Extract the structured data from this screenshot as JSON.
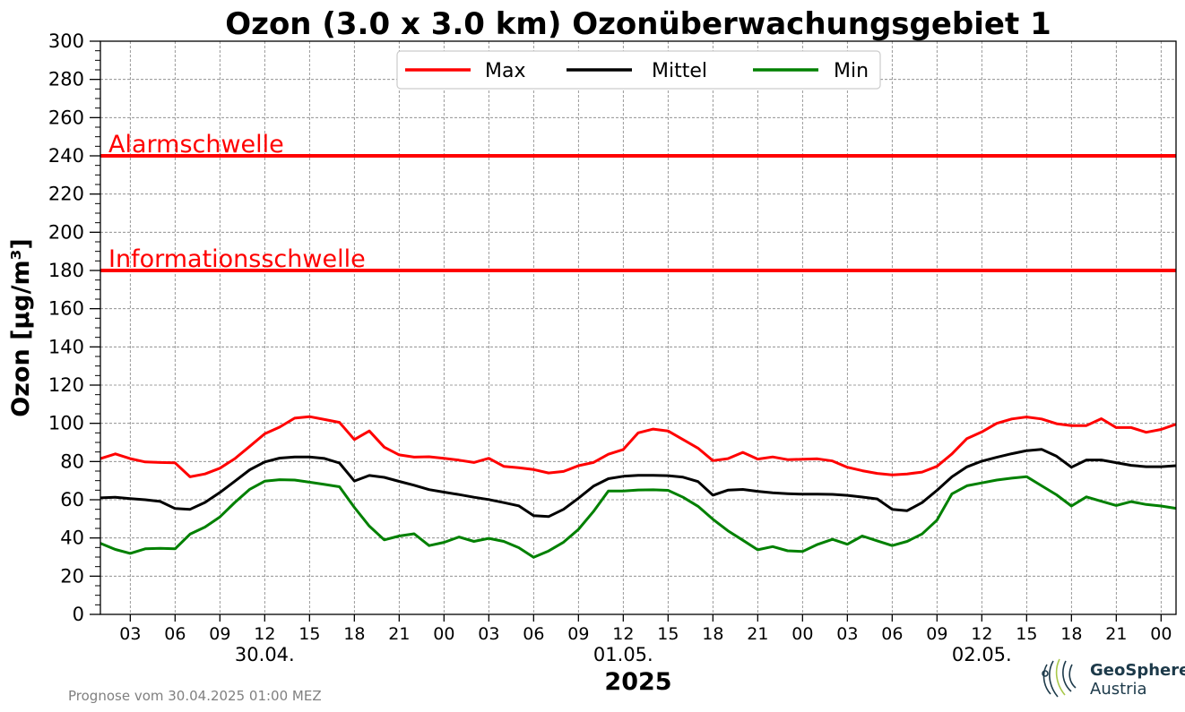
{
  "title": "Ozon (3.0 x 3.0 km) Ozonüberwachungsgebiet 1",
  "footnote": "Prognose vom 30.04.2025 01:00 MEZ",
  "logo": {
    "name": "GeoSphere",
    "sub": "Austria"
  },
  "colors": {
    "max": "#ff0000",
    "mittel": "#000000",
    "min": "#008000",
    "threshold": "#ff0000",
    "grid": "#808080"
  },
  "chart_data": {
    "type": "line",
    "title": "Ozon (3.0 x 3.0 km) Ozonüberwachungsgebiet 1",
    "ylabel": "Ozon [µg/m³]",
    "xlabel": "2025",
    "ylim": [
      0,
      300
    ],
    "yticks": [
      0,
      20,
      40,
      60,
      80,
      100,
      120,
      140,
      160,
      180,
      200,
      220,
      240,
      260,
      280,
      300
    ],
    "grid": true,
    "legend_position": "top-center",
    "x_start_hour": 1,
    "x_end_hour": 73,
    "xticks": [
      {
        "hour": 3,
        "label": "03"
      },
      {
        "hour": 6,
        "label": "06"
      },
      {
        "hour": 9,
        "label": "09"
      },
      {
        "hour": 12,
        "label": "12"
      },
      {
        "hour": 15,
        "label": "15"
      },
      {
        "hour": 18,
        "label": "18"
      },
      {
        "hour": 21,
        "label": "21"
      },
      {
        "hour": 24,
        "label": "00"
      },
      {
        "hour": 27,
        "label": "03"
      },
      {
        "hour": 30,
        "label": "06"
      },
      {
        "hour": 33,
        "label": "09"
      },
      {
        "hour": 36,
        "label": "12"
      },
      {
        "hour": 39,
        "label": "15"
      },
      {
        "hour": 42,
        "label": "18"
      },
      {
        "hour": 45,
        "label": "21"
      },
      {
        "hour": 48,
        "label": "00"
      },
      {
        "hour": 51,
        "label": "03"
      },
      {
        "hour": 54,
        "label": "06"
      },
      {
        "hour": 57,
        "label": "09"
      },
      {
        "hour": 60,
        "label": "12"
      },
      {
        "hour": 63,
        "label": "15"
      },
      {
        "hour": 66,
        "label": "18"
      },
      {
        "hour": 69,
        "label": "21"
      },
      {
        "hour": 72,
        "label": "00"
      }
    ],
    "date_labels": [
      {
        "hour": 12,
        "label": "30.04."
      },
      {
        "hour": 36,
        "label": "01.05."
      },
      {
        "hour": 60,
        "label": "02.05."
      }
    ],
    "thresholds": [
      {
        "label": "Alarmschwelle",
        "value": 240
      },
      {
        "label": "Informationsschwelle",
        "value": 180
      }
    ],
    "series": [
      {
        "name": "Max",
        "color": "#ff0000",
        "values": [
          81.5,
          84,
          81.5,
          79.8,
          79.5,
          79.3,
          72,
          73.5,
          76.5,
          81.5,
          88,
          94.5,
          98,
          102.7,
          103.5,
          102,
          100.5,
          91.5,
          96,
          87.5,
          83.5,
          82.3,
          82.5,
          81.7,
          80.7,
          79.5,
          81.7,
          77.5,
          76.8,
          75.8,
          74,
          74.8,
          77.8,
          79.5,
          83.8,
          86.3,
          95,
          97,
          96,
          91.5,
          87,
          80.5,
          81.5,
          84.8,
          81.3,
          82.4,
          81,
          81.2,
          81.4,
          80.3,
          77,
          75.2,
          73.8,
          73,
          73.5,
          74.5,
          77.5,
          84,
          92,
          95.5,
          100,
          102.3,
          103.3,
          102.3,
          99.8,
          98.8,
          98.8,
          102.4,
          97.8,
          97.8,
          95.3,
          96.8,
          99.5
        ]
      },
      {
        "name": "Mittel",
        "color": "#000000",
        "values": [
          61,
          61.3,
          60.6,
          60,
          59.1,
          55.4,
          55,
          58.6,
          63.8,
          69.7,
          75.7,
          79.8,
          81.8,
          82.4,
          82.4,
          81.6,
          79.2,
          69.8,
          72.7,
          71.7,
          69.6,
          67.6,
          65.3,
          64,
          62.7,
          61.3,
          60.1,
          58.5,
          56.8,
          51.7,
          51.2,
          55,
          60.8,
          67.1,
          71,
          72.3,
          72.8,
          72.8,
          72.6,
          71.8,
          69.5,
          62.4,
          65,
          65.4,
          64.4,
          63.6,
          63.2,
          62.9,
          62.9,
          62.8,
          62.3,
          61.4,
          60.4,
          55,
          54.3,
          58.5,
          64.9,
          72,
          77.2,
          80.2,
          82.2,
          84.1,
          85.7,
          86.4,
          82.8,
          77,
          80.8,
          80.8,
          79.4,
          78,
          77.3,
          77.3,
          77.8
        ]
      },
      {
        "name": "Min",
        "color": "#008000",
        "values": [
          37.2,
          34,
          31.9,
          34.3,
          34.6,
          34.3,
          42,
          45.7,
          51,
          58.6,
          65.5,
          69.7,
          70.5,
          70.3,
          69.2,
          68,
          66.8,
          56,
          46.2,
          39,
          41,
          42.2,
          36,
          37.7,
          40.5,
          38.2,
          39.8,
          38.2,
          34.9,
          29.9,
          33.2,
          37.8,
          44.5,
          53.8,
          64.6,
          64.6,
          65.1,
          65.2,
          64.9,
          61.3,
          56.6,
          49.8,
          43.8,
          38.8,
          33.8,
          35.5,
          33.3,
          32.9,
          36.6,
          39.3,
          36.7,
          41,
          38.5,
          36,
          38.2,
          42.1,
          49.3,
          63.1,
          67.3,
          68.8,
          70.3,
          71.3,
          72.1,
          67.3,
          62.6,
          56.7,
          61.5,
          59.2,
          57,
          59,
          57.5,
          56.7,
          55.5
        ]
      }
    ]
  }
}
